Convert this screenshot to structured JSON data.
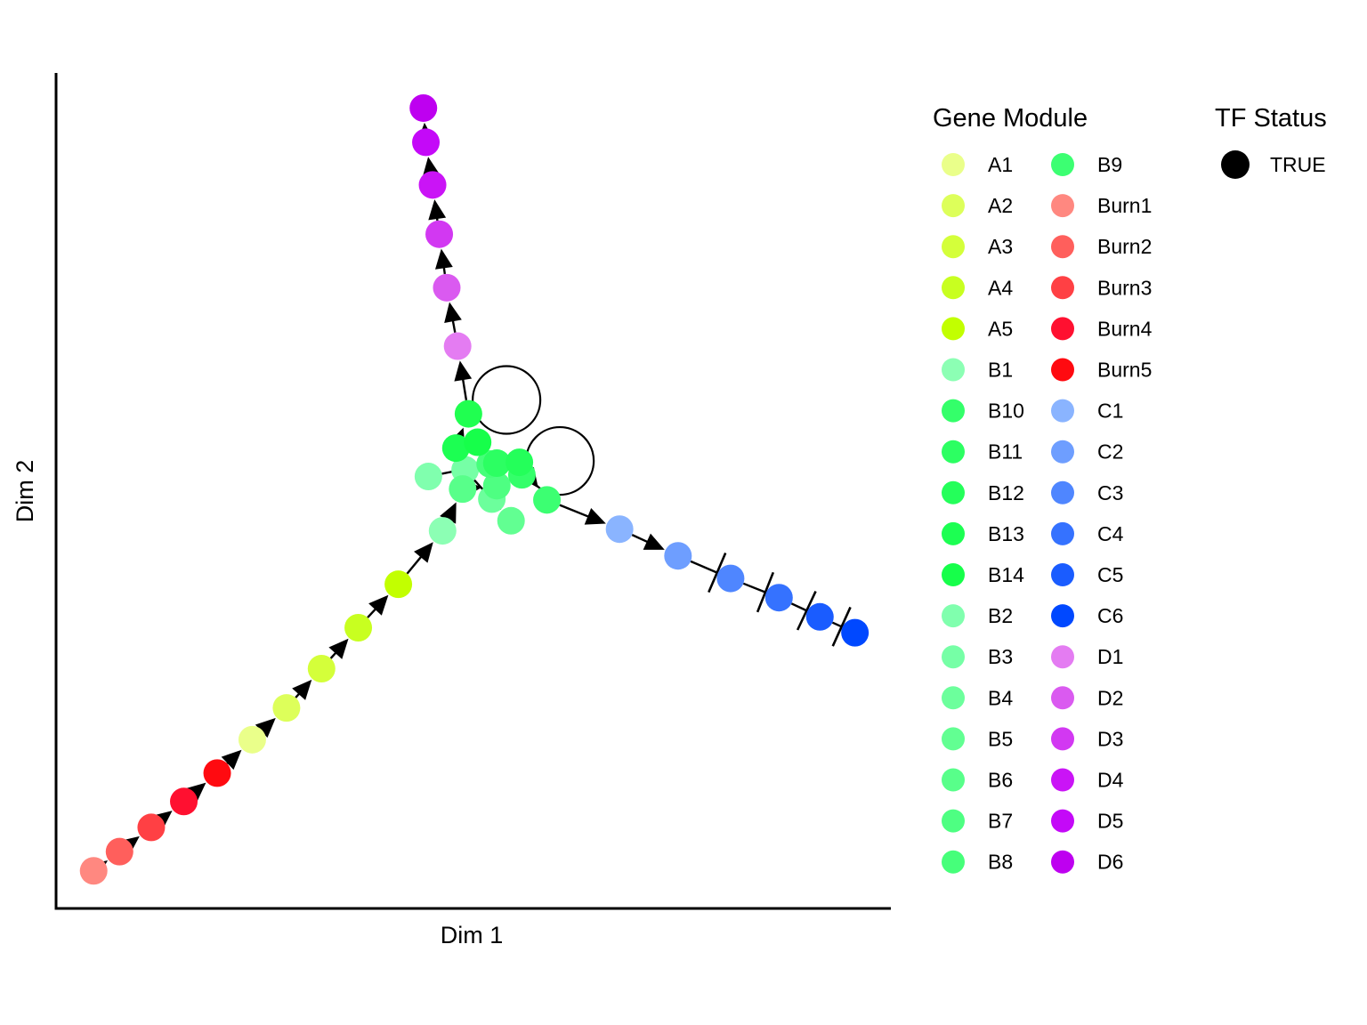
{
  "chart_data": {
    "type": "scatter",
    "title": "",
    "xlabel": "Dim 1",
    "ylabel": "Dim 2",
    "xlim": [
      0,
      100
    ],
    "ylim": [
      0,
      100
    ],
    "grid": false,
    "points": [
      {
        "name": "Burn1",
        "x": 4.5,
        "y": 4.5,
        "color": "#FF8880"
      },
      {
        "name": "Burn2",
        "x": 7.6,
        "y": 6.8,
        "color": "#FF5F5C"
      },
      {
        "name": "Burn3",
        "x": 11.4,
        "y": 9.7,
        "color": "#FF4044"
      },
      {
        "name": "Burn4",
        "x": 15.3,
        "y": 12.8,
        "color": "#FF1030"
      },
      {
        "name": "Burn5",
        "x": 19.3,
        "y": 16.2,
        "color": "#FF0A10"
      },
      {
        "name": "A1",
        "x": 23.5,
        "y": 20.2,
        "color": "#EAFF8A"
      },
      {
        "name": "A2",
        "x": 27.6,
        "y": 24.0,
        "color": "#DDFF5A"
      },
      {
        "name": "A3",
        "x": 31.8,
        "y": 28.7,
        "color": "#D4FF3A"
      },
      {
        "name": "A4",
        "x": 36.2,
        "y": 33.6,
        "color": "#C8FF20"
      },
      {
        "name": "A5",
        "x": 41.0,
        "y": 38.8,
        "color": "#C2FF00"
      },
      {
        "name": "B1",
        "x": 46.3,
        "y": 45.2,
        "color": "#8CFFB4"
      },
      {
        "name": "B2",
        "x": 44.6,
        "y": 51.7,
        "color": "#80FFAE"
      },
      {
        "name": "B3",
        "x": 49.0,
        "y": 52.5,
        "color": "#76FFA6"
      },
      {
        "name": "B4",
        "x": 52.2,
        "y": 49.0,
        "color": "#6CFF9C"
      },
      {
        "name": "B5",
        "x": 54.5,
        "y": 46.4,
        "color": "#62FF92"
      },
      {
        "name": "B6",
        "x": 48.7,
        "y": 50.2,
        "color": "#58FF8A"
      },
      {
        "name": "B7",
        "x": 52.8,
        "y": 50.6,
        "color": "#4EFF82"
      },
      {
        "name": "B8",
        "x": 52.0,
        "y": 53.2,
        "color": "#46FF7A"
      },
      {
        "name": "B9",
        "x": 58.8,
        "y": 48.9,
        "color": "#3CFF72"
      },
      {
        "name": "B10",
        "x": 55.8,
        "y": 51.9,
        "color": "#34FF6A"
      },
      {
        "name": "B11",
        "x": 52.8,
        "y": 53.3,
        "color": "#2CFF62"
      },
      {
        "name": "B12",
        "x": 55.5,
        "y": 53.4,
        "color": "#24FF5A"
      },
      {
        "name": "B13",
        "x": 47.9,
        "y": 55.1,
        "color": "#1CFF52"
      },
      {
        "name": "B14",
        "x": 50.5,
        "y": 55.8,
        "color": "#16FF4A"
      },
      {
        "name": "B14b",
        "x": 49.4,
        "y": 59.2,
        "color": "#20FF50"
      },
      {
        "name": "D1",
        "x": 48.1,
        "y": 67.3,
        "color": "#E47CF2"
      },
      {
        "name": "D2",
        "x": 46.8,
        "y": 74.3,
        "color": "#DA5AF0"
      },
      {
        "name": "D3",
        "x": 45.9,
        "y": 80.7,
        "color": "#D238F2"
      },
      {
        "name": "D4",
        "x": 45.1,
        "y": 86.6,
        "color": "#CA14F6"
      },
      {
        "name": "D5",
        "x": 44.3,
        "y": 91.7,
        "color": "#C409F8"
      },
      {
        "name": "D6",
        "x": 44.0,
        "y": 95.8,
        "color": "#BE00F0"
      },
      {
        "name": "C1",
        "x": 67.5,
        "y": 45.4,
        "color": "#8AB4FF"
      },
      {
        "name": "C2",
        "x": 74.5,
        "y": 42.2,
        "color": "#6E9EFF"
      },
      {
        "name": "C3",
        "x": 80.8,
        "y": 39.5,
        "color": "#4F86FF"
      },
      {
        "name": "C4",
        "x": 86.6,
        "y": 37.2,
        "color": "#3572FF"
      },
      {
        "name": "C5",
        "x": 91.5,
        "y": 34.9,
        "color": "#1A5CFF"
      },
      {
        "name": "C6",
        "x": 95.7,
        "y": 33.0,
        "color": "#0048FF"
      }
    ],
    "edges": [
      {
        "from": "Burn1",
        "to": "Burn2",
        "type": "activation"
      },
      {
        "from": "Burn2",
        "to": "Burn3",
        "type": "activation"
      },
      {
        "from": "Burn3",
        "to": "Burn4",
        "type": "activation"
      },
      {
        "from": "Burn4",
        "to": "Burn5",
        "type": "activation"
      },
      {
        "from": "Burn5",
        "to": "A1",
        "type": "activation"
      },
      {
        "from": "A1",
        "to": "A2",
        "type": "activation"
      },
      {
        "from": "A2",
        "to": "A3",
        "type": "activation"
      },
      {
        "from": "A3",
        "to": "A4",
        "type": "activation"
      },
      {
        "from": "A4",
        "to": "A5",
        "type": "activation"
      },
      {
        "from": "A5",
        "to": "B1",
        "type": "activation"
      },
      {
        "from": "B1",
        "to": "B6",
        "type": "activation"
      },
      {
        "from": "B13",
        "to": "B14b",
        "type": "activation"
      },
      {
        "from": "B14b",
        "to": "D1",
        "type": "activation"
      },
      {
        "from": "D1",
        "to": "D2",
        "type": "activation"
      },
      {
        "from": "D2",
        "to": "D3",
        "type": "activation"
      },
      {
        "from": "D3",
        "to": "D4",
        "type": "activation"
      },
      {
        "from": "D4",
        "to": "D5",
        "type": "activation"
      },
      {
        "from": "D5",
        "to": "D6",
        "type": "activation"
      },
      {
        "from": "B9",
        "to": "C1",
        "type": "activation"
      },
      {
        "from": "C1",
        "to": "C2",
        "type": "activation"
      },
      {
        "from": "C2",
        "to": "C3",
        "type": "repression"
      },
      {
        "from": "C3",
        "to": "C4",
        "type": "repression"
      },
      {
        "from": "C4",
        "to": "C5",
        "type": "repression"
      },
      {
        "from": "C5",
        "to": "C6",
        "type": "repression"
      },
      {
        "from": "B11",
        "to": "B4",
        "type": "activation"
      },
      {
        "from": "B12",
        "to": "B9",
        "type": "activation"
      },
      {
        "from": "B3",
        "to": "B5",
        "type": "activation"
      },
      {
        "from": "B6",
        "to": "B7",
        "type": "activation"
      },
      {
        "from": "B2",
        "to": "B8",
        "type": "activation"
      }
    ],
    "self_loops": [
      "B14b",
      "B10"
    ],
    "legend": {
      "placement": "right",
      "gene_module": {
        "title": "Gene Module",
        "entries": [
          {
            "label": "A1",
            "color": "#EAFF8A"
          },
          {
            "label": "A2",
            "color": "#DDFF5A"
          },
          {
            "label": "A3",
            "color": "#D4FF3A"
          },
          {
            "label": "A4",
            "color": "#C8FF20"
          },
          {
            "label": "A5",
            "color": "#C2FF00"
          },
          {
            "label": "B1",
            "color": "#8CFFB4"
          },
          {
            "label": "B10",
            "color": "#34FF6A"
          },
          {
            "label": "B11",
            "color": "#2CFF62"
          },
          {
            "label": "B12",
            "color": "#24FF5A"
          },
          {
            "label": "B13",
            "color": "#1CFF52"
          },
          {
            "label": "B14",
            "color": "#16FF4A"
          },
          {
            "label": "B2",
            "color": "#80FFAE"
          },
          {
            "label": "B3",
            "color": "#76FFA6"
          },
          {
            "label": "B4",
            "color": "#6CFF9C"
          },
          {
            "label": "B5",
            "color": "#62FF92"
          },
          {
            "label": "B6",
            "color": "#58FF8A"
          },
          {
            "label": "B7",
            "color": "#4EFF82"
          },
          {
            "label": "B8",
            "color": "#46FF7A"
          },
          {
            "label": "B9",
            "color": "#3CFF72"
          },
          {
            "label": "Burn1",
            "color": "#FF8880"
          },
          {
            "label": "Burn2",
            "color": "#FF5F5C"
          },
          {
            "label": "Burn3",
            "color": "#FF4044"
          },
          {
            "label": "Burn4",
            "color": "#FF1030"
          },
          {
            "label": "Burn5",
            "color": "#FF0A10"
          },
          {
            "label": "C1",
            "color": "#8AB4FF"
          },
          {
            "label": "C2",
            "color": "#6E9EFF"
          },
          {
            "label": "C3",
            "color": "#4F86FF"
          },
          {
            "label": "C4",
            "color": "#3572FF"
          },
          {
            "label": "C5",
            "color": "#1A5CFF"
          },
          {
            "label": "C6",
            "color": "#0048FF"
          },
          {
            "label": "D1",
            "color": "#E47CF2"
          },
          {
            "label": "D2",
            "color": "#DA5AF0"
          },
          {
            "label": "D3",
            "color": "#D238F2"
          },
          {
            "label": "D4",
            "color": "#CA14F6"
          },
          {
            "label": "D5",
            "color": "#C409F8"
          },
          {
            "label": "D6",
            "color": "#BE00F0"
          }
        ]
      },
      "tf_status": {
        "title": "TF Status",
        "entries": [
          {
            "label": "TRUE",
            "color": "#000000"
          }
        ]
      }
    }
  }
}
